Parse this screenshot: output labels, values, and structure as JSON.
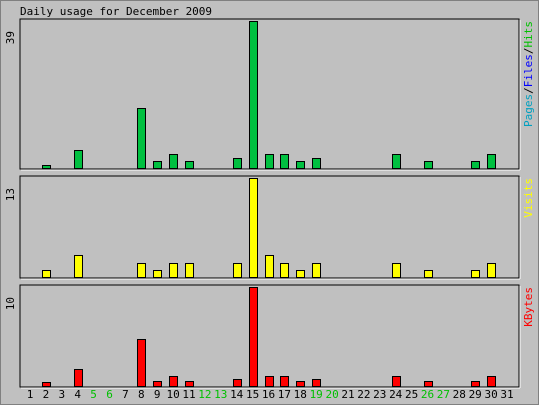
{
  "chart_data": {
    "type": "bar",
    "title": "Daily usage for December 2009",
    "categories": [
      "1",
      "2",
      "3",
      "4",
      "5",
      "6",
      "7",
      "8",
      "9",
      "10",
      "11",
      "12",
      "13",
      "14",
      "15",
      "16",
      "17",
      "18",
      "19",
      "20",
      "21",
      "22",
      "23",
      "24",
      "25",
      "26",
      "27",
      "28",
      "29",
      "30",
      "31"
    ],
    "weekend_days": [
      5,
      6,
      12,
      13,
      19,
      20,
      26,
      27
    ],
    "panels": [
      {
        "id": "hits",
        "ymax_label": "39",
        "ylim": [
          0,
          39
        ],
        "legend": [
          {
            "text": "Pages",
            "color": "#00a0c0"
          },
          {
            "text": "/",
            "color": "#000000"
          },
          {
            "text": "Files",
            "color": "#0000ff"
          },
          {
            "text": "/",
            "color": "#000000"
          },
          {
            "text": "Hits",
            "color": "#00c000"
          }
        ],
        "series": [
          {
            "name": "Hits",
            "color": "#00c040",
            "values": [
              0,
              1,
              0,
              5,
              0,
              0,
              0,
              16,
              2,
              4,
              2,
              0,
              0,
              3,
              39,
              4,
              4,
              2,
              3,
              0,
              0,
              0,
              0,
              4,
              0,
              2,
              0,
              0,
              2,
              4,
              0
            ]
          }
        ]
      },
      {
        "id": "visits",
        "ymax_label": "13",
        "ylim": [
          0,
          13
        ],
        "legend": [
          {
            "text": "Visits",
            "color": "#ffff00"
          }
        ],
        "series": [
          {
            "name": "Visits",
            "color": "#ffff00",
            "values": [
              0,
              1,
              0,
              3,
              0,
              0,
              0,
              2,
              1,
              2,
              2,
              0,
              0,
              2,
              13,
              3,
              2,
              1,
              2,
              0,
              0,
              0,
              0,
              2,
              0,
              1,
              0,
              0,
              1,
              2,
              0
            ]
          }
        ]
      },
      {
        "id": "kbytes",
        "ymax_label": "10",
        "ylim": [
          0,
          10
        ],
        "legend": [
          {
            "text": "KBytes",
            "color": "#ff0000"
          }
        ],
        "series": [
          {
            "name": "KBytes",
            "color": "#ff0000",
            "values": [
              0,
              0.5,
              0,
              1.8,
              0,
              0,
              0,
              4.8,
              0.6,
              1.1,
              0.6,
              0,
              0,
              0.8,
              10,
              1.1,
              1.1,
              0.6,
              0.8,
              0,
              0,
              0,
              0,
              1.1,
              0,
              0.6,
              0,
              0,
              0.6,
              1.1,
              0
            ]
          }
        ]
      }
    ],
    "colors": {
      "background": "#c0c0c0",
      "frame_light": "#ffffff",
      "frame_dark": "#808080",
      "weekday_label": "#000000",
      "weekend_label": "#00c000"
    }
  }
}
